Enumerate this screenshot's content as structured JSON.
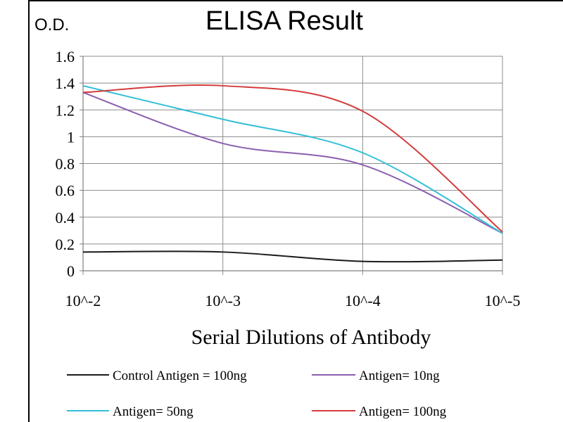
{
  "chart_data": {
    "type": "line",
    "title": "ELISA Result",
    "ylabel": "O.D.",
    "xlabel": "Serial Dilutions  of Antibody",
    "categories": [
      "10^-2",
      "10^-3",
      "10^-4",
      "10^-5"
    ],
    "ylim": [
      0,
      1.6
    ],
    "yticks": [
      "0",
      "0.2",
      "0.4",
      "0.6",
      "0.8",
      "1",
      "1.2",
      "1.4",
      "1.6"
    ],
    "grid": true,
    "legend_position": "bottom",
    "series": [
      {
        "name": "Control Antigen = 100ng",
        "color": "#1a1a1a",
        "values": [
          0.14,
          0.14,
          0.07,
          0.08
        ]
      },
      {
        "name": "Antigen= 10ng",
        "color": "#8b5fb0",
        "values": [
          1.33,
          0.95,
          0.79,
          0.28
        ]
      },
      {
        "name": "Antigen= 50ng",
        "color": "#33bfd6",
        "values": [
          1.38,
          1.13,
          0.88,
          0.28
        ]
      },
      {
        "name": "Antigen= 100ng",
        "color": "#d43c3c",
        "values": [
          1.33,
          1.38,
          1.19,
          0.29
        ]
      }
    ]
  }
}
